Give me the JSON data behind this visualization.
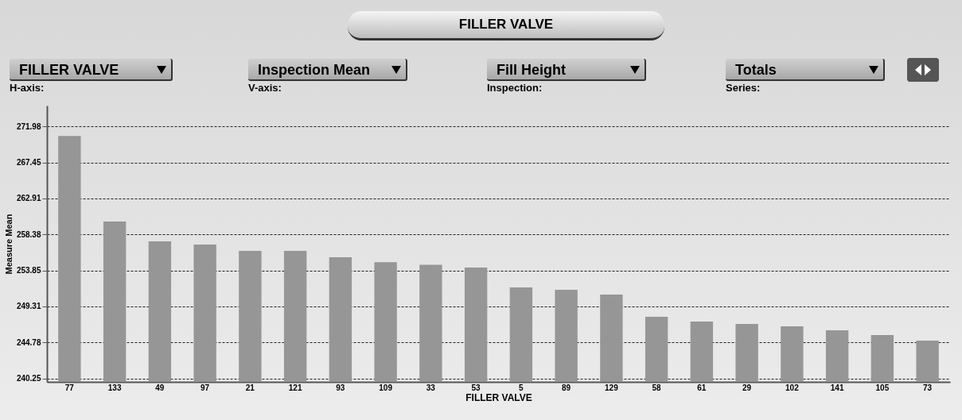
{
  "chart_data": {
    "type": "bar",
    "title": "FILLER VALVE",
    "xlabel": "FILLER VALVE",
    "ylabel": "Measure Mean",
    "annotations": [
      "FILLER VALVE",
      "H-axis:",
      "Inspection Mean",
      "V-axis:",
      "Fill Height",
      "Inspection:",
      "Totals",
      "Series:"
    ],
    "categories": [
      "77",
      "133",
      "49",
      "97",
      "21",
      "121",
      "93",
      "109",
      "33",
      "53",
      "5",
      "89",
      "129",
      "58",
      "61",
      "29",
      "102",
      "141",
      "105",
      "73"
    ],
    "values": [
      270.77,
      259.99,
      257.5,
      257.1,
      256.3,
      256.3,
      255.5,
      254.87,
      254.56,
      254.2,
      251.7,
      251.4,
      250.8,
      248.0,
      247.4,
      247.1,
      246.8,
      246.3,
      245.7,
      245.0
    ],
    "color": "#969696",
    "ylim": [
      239.8,
      274.6
    ],
    "yticks": [
      240.25,
      244.78,
      249.31,
      253.85,
      258.38,
      262.91,
      267.45,
      271.98
    ],
    "grid": "y",
    "line_style": "dashed"
  }
}
